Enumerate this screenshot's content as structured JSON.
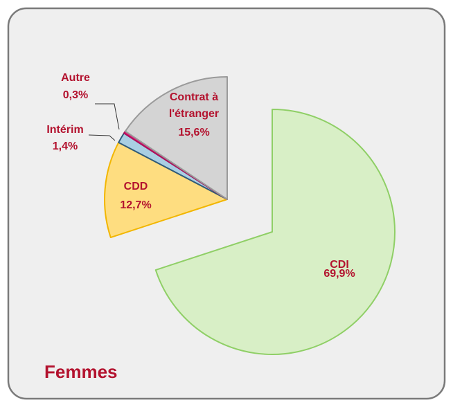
{
  "chart_data": {
    "type": "pie",
    "title": "Femmes",
    "categories": [
      "CDI",
      "CDD",
      "Intérim",
      "Autre",
      "Contrat à l'étranger"
    ],
    "values": [
      69.9,
      12.7,
      1.4,
      0.3,
      15.6
    ],
    "value_labels": [
      "69,9%",
      "12,7%",
      "1,4%",
      "0,3%",
      "15,6%"
    ],
    "colors": [
      "#d8efc6",
      "#fedd80",
      "#a9cfe3",
      "#e3207b",
      "#d4d4d4"
    ]
  }
}
